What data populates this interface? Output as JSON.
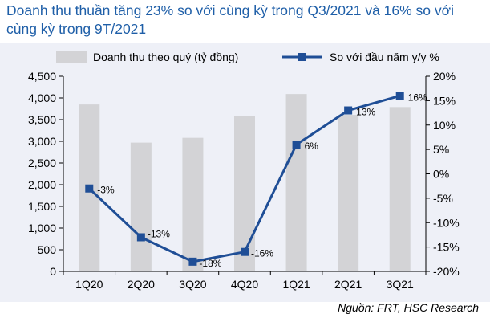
{
  "title": "Doanh thu thuần tăng 23% so với cùng kỳ trong Q3/2021 và 16% so với cùng kỳ trong 9T/2021",
  "source": "Nguồn: FRT, HSC Research",
  "colors": {
    "bar": "#d3d3d6",
    "line": "#1f4e96",
    "title": "#1f5fa8",
    "panel": "#eef0f7"
  },
  "chart_data": {
    "type": "bar+line",
    "categories": [
      "1Q20",
      "2Q20",
      "3Q20",
      "4Q20",
      "1Q21",
      "2Q21",
      "3Q21"
    ],
    "series": [
      {
        "name": "Doanh thu theo quý (tỷ đồng)",
        "type": "bar",
        "axis": "left",
        "values": [
          3850,
          2970,
          3080,
          3580,
          4090,
          3610,
          3790
        ]
      },
      {
        "name": "So với đầu năm y/y %",
        "type": "line",
        "axis": "right",
        "values": [
          -3,
          -13,
          -18,
          -16,
          6,
          13,
          16
        ],
        "labels": [
          "-3%",
          "-13%",
          "-18%",
          "-16%",
          "6%",
          "13%",
          "16%"
        ]
      }
    ],
    "y_left": {
      "min": 0,
      "max": 4500,
      "step": 500,
      "ticks": [
        "0",
        "500",
        "1,000",
        "1,500",
        "2,000",
        "2,500",
        "3,000",
        "3,500",
        "4,000",
        "4,500"
      ]
    },
    "y_right": {
      "min": -20,
      "max": 20,
      "step": 5,
      "ticks": [
        "-20%",
        "-15%",
        "-10%",
        "-5%",
        "0%",
        "5%",
        "10%",
        "15%",
        "20%"
      ]
    },
    "legend_position": "top",
    "grid": false
  }
}
